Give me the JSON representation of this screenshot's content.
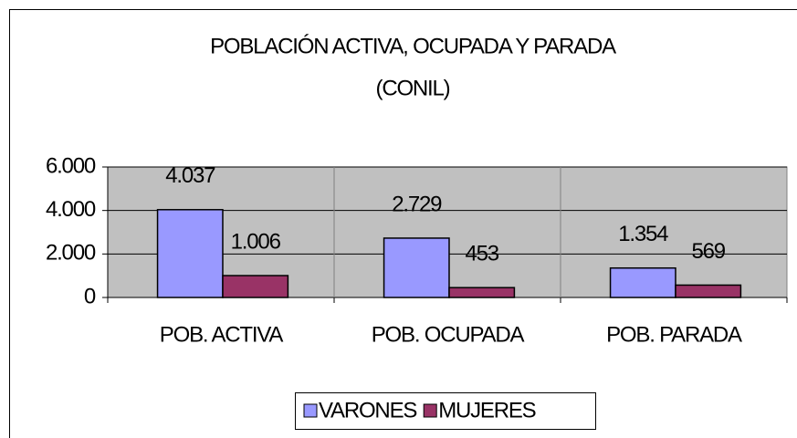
{
  "chart_data": {
    "type": "bar",
    "title": "POBLACIÓN ACTIVA, OCUPADA Y PARADA",
    "subtitle": "(CONIL)",
    "categories": [
      "POB. ACTIVA",
      "POB. OCUPADA",
      "POB. PARADA"
    ],
    "series": [
      {
        "name": "VARONES",
        "color": "#9999ff",
        "values": [
          4037,
          2729,
          1354
        ],
        "value_labels": [
          "4.037",
          "2.729",
          "1.354"
        ]
      },
      {
        "name": "MUJERES",
        "color": "#993366",
        "values": [
          1006,
          453,
          569
        ],
        "value_labels": [
          "1.006",
          "453",
          "569"
        ]
      }
    ],
    "ylim": [
      0,
      6000
    ],
    "yticks": [
      0,
      {
        "value": 2000,
        "label": "2.000"
      },
      {
        "value": 4000,
        "label": "4.000"
      },
      {
        "value": 6000,
        "label": "6.000"
      }
    ],
    "grid": true,
    "legend": "bottom"
  }
}
